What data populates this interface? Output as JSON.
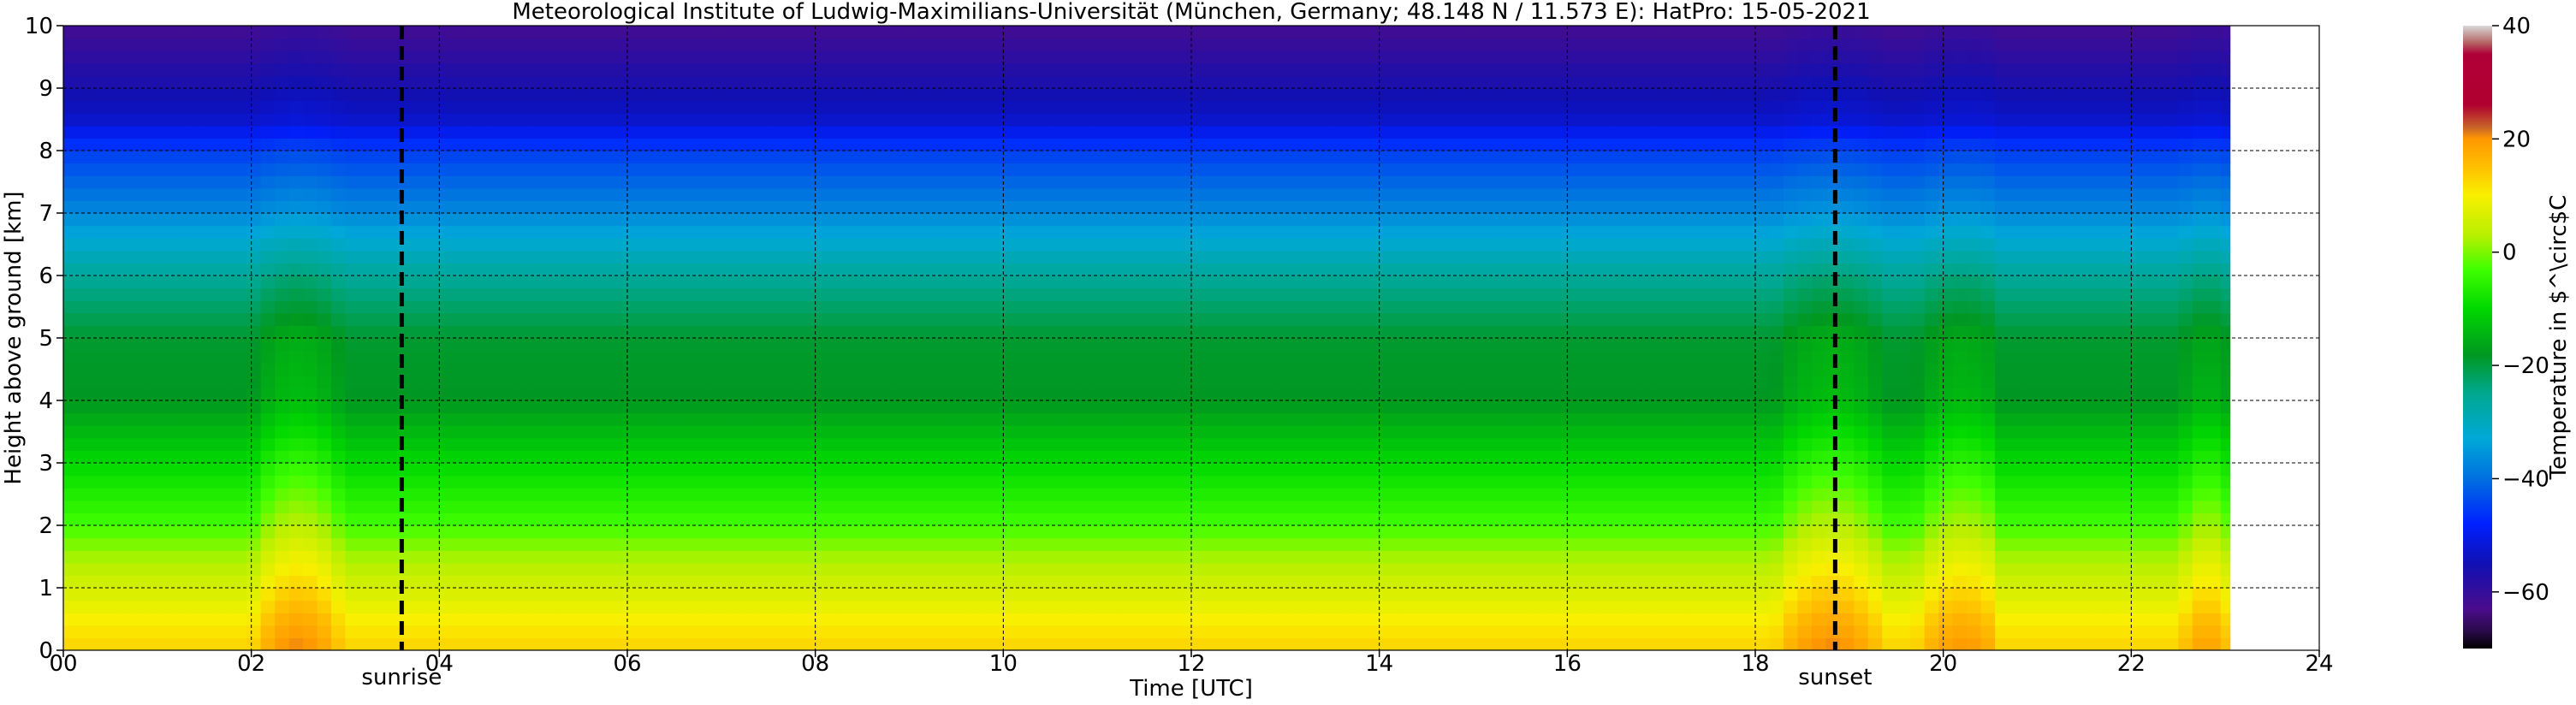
{
  "chart_data": {
    "type": "heatmap",
    "title": "Meteorological Institute of Ludwig-Maximilians-Universität (München, Germany; 48.148 N / 11.573 E):    HatPro: 15-05-2021",
    "xlabel": "Time [UTC]",
    "ylabel": "Height above ground [km]",
    "xlim": [
      0,
      24
    ],
    "ylim": [
      0,
      10
    ],
    "data_end_hour": 23.05,
    "x_ticks": [
      0,
      2,
      4,
      6,
      8,
      10,
      12,
      14,
      16,
      18,
      20,
      22,
      24
    ],
    "x_tick_labels": [
      "00",
      "02",
      "04",
      "06",
      "08",
      "10",
      "12",
      "14",
      "16",
      "18",
      "20",
      "22",
      "24"
    ],
    "y_ticks": [
      0,
      1,
      2,
      3,
      4,
      5,
      6,
      7,
      8,
      9,
      10
    ],
    "y_tick_labels": [
      "0",
      "1",
      "2",
      "3",
      "4",
      "5",
      "6",
      "7",
      "8",
      "9",
      "10"
    ],
    "grid": true,
    "annotations": [
      {
        "label": "sunrise",
        "hour": 3.6
      },
      {
        "label": "sunset",
        "hour": 18.85
      }
    ],
    "colorbar": {
      "label": "Temperature in $^\\circ$C",
      "range": [
        -70,
        40
      ],
      "ticks": [
        40,
        20,
        0,
        -20,
        -40,
        -60
      ],
      "tick_labels": [
        "40",
        "20",
        "0",
        "−20",
        "−40",
        "−60"
      ],
      "stops": [
        {
          "t": -70,
          "color": "#000000"
        },
        {
          "t": -67,
          "color": "#2a0a48"
        },
        {
          "t": -63,
          "color": "#4a0c8c"
        },
        {
          "t": -55,
          "color": "#1010b4"
        },
        {
          "t": -48,
          "color": "#0020ff"
        },
        {
          "t": -40,
          "color": "#0070e0"
        },
        {
          "t": -33,
          "color": "#00a8d8"
        },
        {
          "t": -25,
          "color": "#00a890"
        },
        {
          "t": -18,
          "color": "#009820"
        },
        {
          "t": -10,
          "color": "#00d800"
        },
        {
          "t": -3,
          "color": "#40ff00"
        },
        {
          "t": 3,
          "color": "#b8f000"
        },
        {
          "t": 10,
          "color": "#f8f000"
        },
        {
          "t": 15,
          "color": "#ffc000"
        },
        {
          "t": 20,
          "color": "#ff9800"
        },
        {
          "t": 22,
          "color": "#c86428"
        },
        {
          "t": 26,
          "color": "#b00030"
        },
        {
          "t": 35,
          "color": "#b00038"
        },
        {
          "t": 37,
          "color": "#b46464"
        },
        {
          "t": 40,
          "color": "#d8d8d8"
        }
      ]
    },
    "temperature_profile": {
      "heights_km": [
        0,
        0.5,
        1.0,
        1.5,
        2.0,
        3.0,
        4.0,
        5.0,
        6.0,
        7.0,
        8.0,
        8.5,
        9.0,
        9.5,
        10.0
      ],
      "temperature_c": [
        13,
        10,
        6,
        2,
        -3,
        -10,
        -18,
        -19,
        -26,
        -37,
        -45,
        -53,
        -56,
        -59,
        -62
      ]
    },
    "warm_episodes": [
      {
        "start_hour": 2.0,
        "end_hour": 3.0,
        "peak_hour": 2.5,
        "warming_c": 8
      },
      {
        "start_hour": 18.2,
        "end_hour": 19.3,
        "peak_hour": 18.8,
        "warming_c": 8
      },
      {
        "start_hour": 19.7,
        "end_hour": 20.6,
        "peak_hour": 20.2,
        "warming_c": 7
      },
      {
        "start_hour": 22.5,
        "end_hour": 23.05,
        "peak_hour": 22.8,
        "warming_c": 6
      }
    ]
  }
}
